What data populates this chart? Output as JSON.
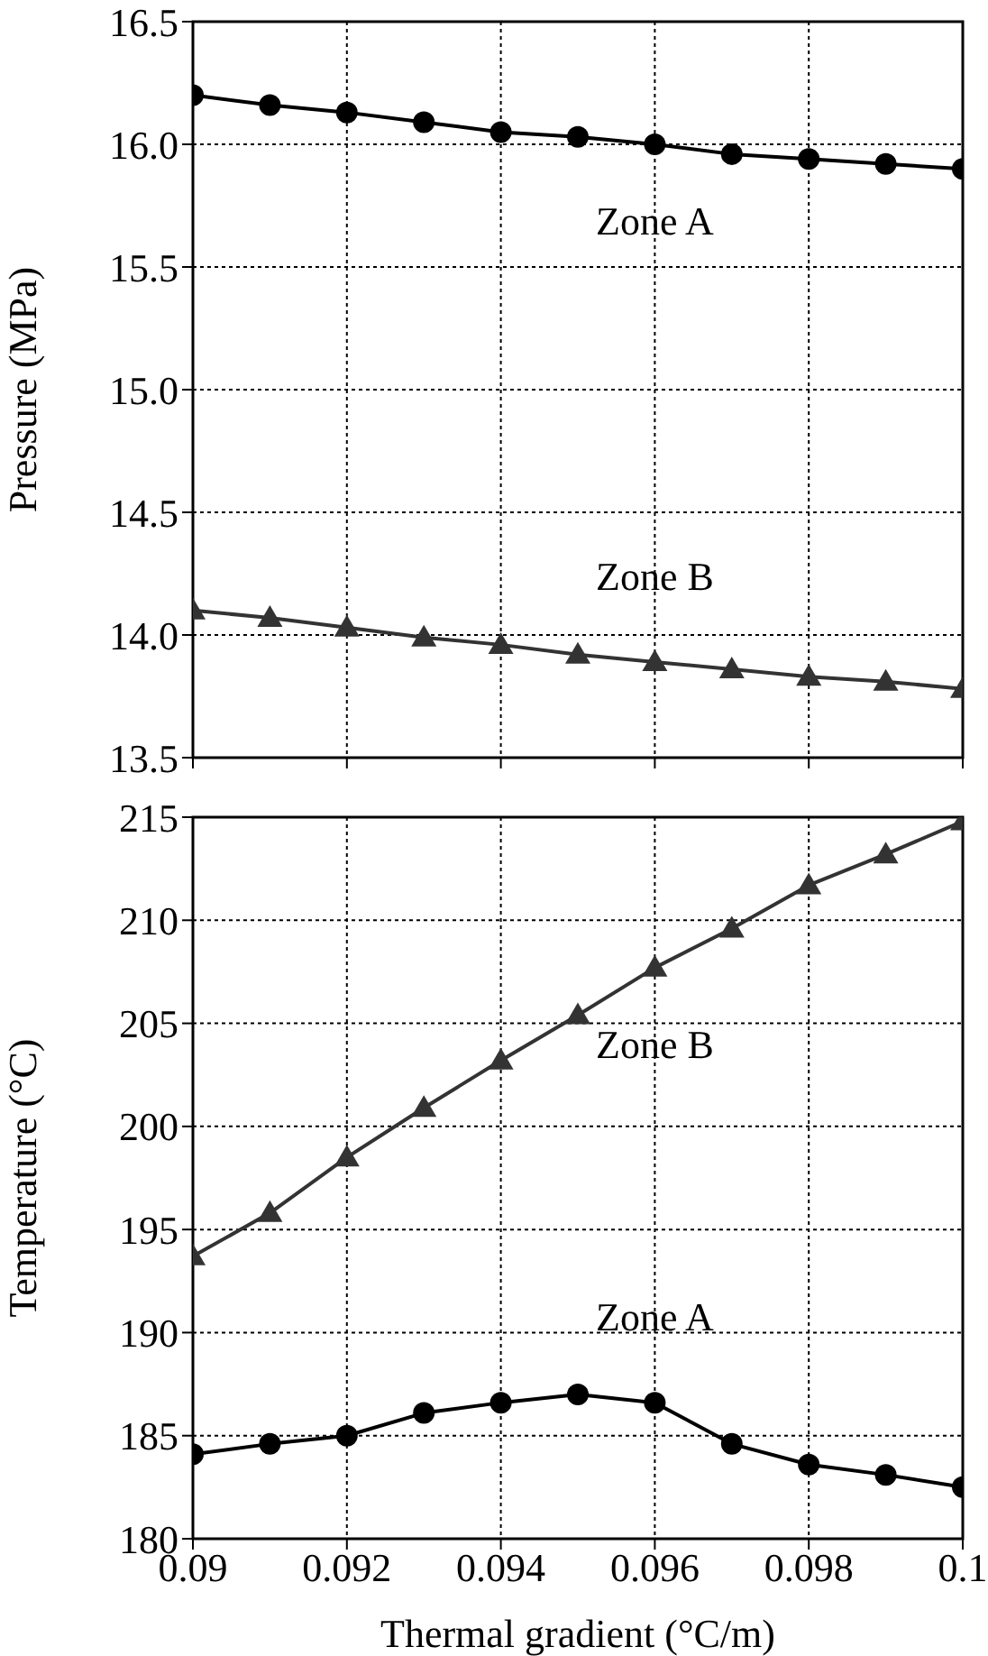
{
  "chart_data": [
    {
      "type": "line",
      "ylabel": "Pressure  (MPa)",
      "x": [
        0.09,
        0.091,
        0.092,
        0.093,
        0.094,
        0.095,
        0.096,
        0.097,
        0.098,
        0.099,
        0.1
      ],
      "xlim": [
        0.09,
        0.1
      ],
      "xticks": [
        0.09,
        0.092,
        0.094,
        0.096,
        0.098,
        0.1
      ],
      "ylim": [
        13.5,
        16.5
      ],
      "yticks": [
        {
          "value": 13.5,
          "label": "13.5"
        },
        {
          "value": 14,
          "label": "14.0"
        },
        {
          "value": 14.5,
          "label": "14.5"
        },
        {
          "value": 15,
          "label": "15.0"
        },
        {
          "value": 15.5,
          "label": "15.5"
        },
        {
          "value": 16,
          "label": "16.0"
        },
        {
          "value": 16.5,
          "label": "16.5"
        }
      ],
      "grid": true,
      "tick_labels": "y",
      "line_style": "solid",
      "series": [
        {
          "name": "Zone A",
          "color": "#000000",
          "marker": "circle",
          "values": [
            16.2,
            16.16,
            16.13,
            16.09,
            16.05,
            16.03,
            16.0,
            15.96,
            15.94,
            15.92,
            15.9
          ]
        },
        {
          "name": "Zone B",
          "color": "#333333",
          "marker": "triangle",
          "values": [
            14.1,
            14.07,
            14.03,
            13.99,
            13.96,
            13.92,
            13.89,
            13.86,
            13.83,
            13.81,
            13.78
          ]
        }
      ]
    },
    {
      "type": "line",
      "xlabel": "Thermal gradient (°C/m)",
      "ylabel": "Temperature  (°C)",
      "x": [
        0.09,
        0.091,
        0.092,
        0.093,
        0.094,
        0.095,
        0.096,
        0.097,
        0.098,
        0.099,
        0.1
      ],
      "xlim": [
        0.09,
        0.1
      ],
      "xticks": [
        0.09,
        0.092,
        0.094,
        0.096,
        0.098,
        0.1
      ],
      "ylim": [
        180,
        215
      ],
      "yticks": [
        180,
        185,
        190,
        195,
        200,
        205,
        210,
        215
      ],
      "grid": true,
      "line_style": "solid",
      "series": [
        {
          "name": "Zone B",
          "color": "#333333",
          "marker": "triangle",
          "values": [
            193.7,
            195.8,
            198.5,
            200.9,
            203.2,
            205.4,
            207.7,
            209.6,
            211.7,
            213.2,
            214.8
          ]
        },
        {
          "name": "Zone A",
          "color": "#000000",
          "marker": "circle",
          "values": [
            184.1,
            184.6,
            185.0,
            186.1,
            186.6,
            187.0,
            186.6,
            184.6,
            183.6,
            183.1,
            182.5
          ]
        }
      ]
    }
  ]
}
